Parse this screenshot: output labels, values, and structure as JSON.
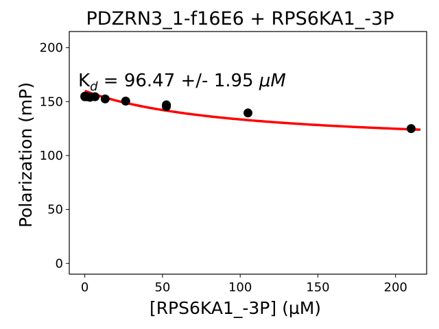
{
  "chart_data": {
    "type": "scatter",
    "title": "PDZRN3_1-f16E6 + RPS6KA1_-3P",
    "xlabel": "[RPS6KA1_-3P] (µM)",
    "ylabel": "Polarization (mP)",
    "xlim": [
      -10,
      220
    ],
    "ylim": [
      -10,
      215
    ],
    "xticks": [
      0,
      50,
      100,
      150,
      200
    ],
    "yticks": [
      0,
      50,
      100,
      150,
      200
    ],
    "grid": false,
    "annotation": {
      "prefix": "K",
      "subscript": "d",
      "text": " = 96.47 +/- 1.95 ",
      "unit": "μM"
    },
    "series": [
      {
        "kind": "points",
        "color": "#000000",
        "x": [
          0,
          0,
          1.6,
          3.3,
          6.6,
          13.1,
          26.3,
          52.5,
          52.5,
          105,
          210
        ],
        "y": [
          154.5,
          155,
          154.5,
          154,
          154.5,
          152.5,
          150.5,
          147,
          145.5,
          139.5,
          125
        ]
      },
      {
        "kind": "fit",
        "color": "#ff0000",
        "Kd": 96.47,
        "x_range": [
          0,
          216
        ],
        "y_start": 160,
        "y_end": 124
      }
    ]
  }
}
